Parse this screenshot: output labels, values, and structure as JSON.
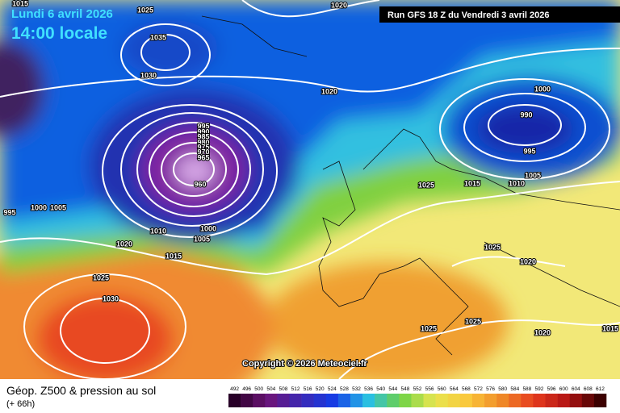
{
  "header": {
    "date": "Lundi 6 avril 2026",
    "time": "14:00 locale",
    "run": "Run GFS 18 Z du Vendredi 3 avril 2026"
  },
  "copyright": "Copyright © 2026 Meteociel.fr",
  "footer": {
    "title": "Géop. Z500 & pression au sol",
    "subtitle": "(+ 66h)"
  },
  "isobar_labels": [
    1015,
    1025,
    1020,
    1035,
    1030,
    1020,
    1000,
    990,
    995,
    1005,
    1010,
    1015,
    1025,
    995,
    990,
    985,
    980,
    975,
    970,
    965,
    960,
    995,
    1000,
    1005,
    1010,
    1000,
    1005,
    1020,
    1015,
    1025,
    1030,
    1025,
    1020,
    1025,
    1025,
    1020,
    1015
  ],
  "colorbar": {
    "labels": [
      492,
      496,
      500,
      504,
      508,
      512,
      516,
      520,
      524,
      528,
      532,
      536,
      540,
      544,
      548,
      552,
      556,
      560,
      564,
      568,
      572,
      576,
      580,
      584,
      588,
      592,
      596,
      600,
      604,
      608,
      612
    ]
  }
}
